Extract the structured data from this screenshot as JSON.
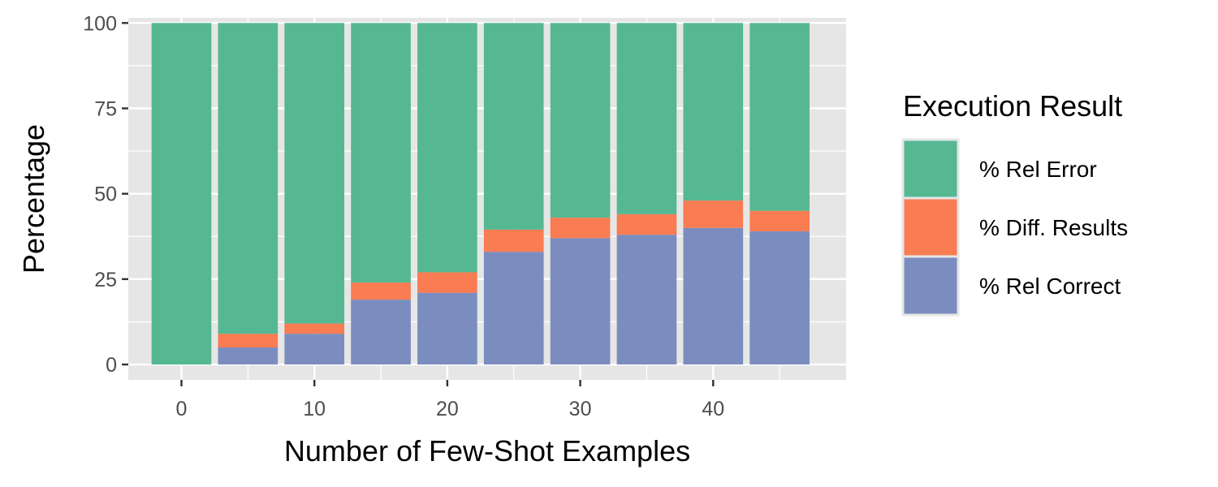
{
  "chart_data": {
    "type": "bar",
    "stacked": true,
    "xlabel": "Number of Few-Shot Examples",
    "ylabel": "Percentage",
    "xlim": [
      -4,
      50
    ],
    "ylim": [
      -4.5,
      101.5
    ],
    "x_ticks": [
      0,
      10,
      20,
      30,
      40
    ],
    "y_ticks": [
      0,
      25,
      50,
      75,
      100
    ],
    "grid": true,
    "legend": {
      "title": "Execution Result",
      "position": "right"
    },
    "x": [
      0,
      5,
      10,
      15,
      20,
      25,
      30,
      35,
      40,
      45
    ],
    "series": [
      {
        "name": "% Rel Correct",
        "color": "#7b8dbf",
        "values": [
          0,
          5,
          9,
          19,
          21,
          33,
          37,
          38,
          40,
          39
        ]
      },
      {
        "name": "% Diff. Results",
        "color": "#f97c52",
        "values": [
          0,
          4,
          3,
          5,
          6,
          6.5,
          6,
          6,
          8,
          6
        ]
      },
      {
        "name": "% Rel Error",
        "color": "#56b893",
        "values": [
          100,
          91,
          88,
          76,
          73,
          60.5,
          57,
          56,
          52,
          55
        ]
      }
    ],
    "legend_order": [
      "% Rel Error",
      "% Diff. Results",
      "% Rel Correct"
    ],
    "panel_background": "#e6e6e6",
    "grid_color": "#ffffff"
  }
}
